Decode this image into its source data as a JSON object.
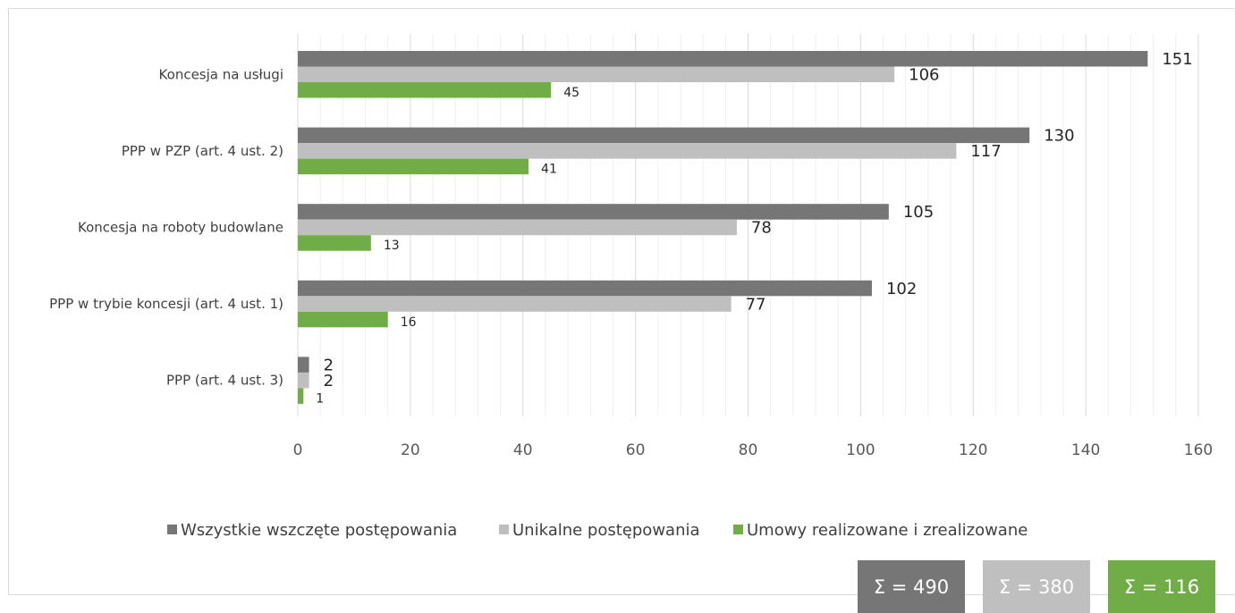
{
  "chart_data": {
    "type": "bar",
    "orientation": "horizontal",
    "categories": [
      "Koncesja na usługi",
      "PPP w PZP (art. 4 ust. 2)",
      "Koncesja na roboty budowlane",
      "PPP w trybie koncesji (art. 4 ust. 1)",
      "PPP (art. 4 ust. 3)"
    ],
    "series": [
      {
        "name": "Wszystkie wszczęte postępowania",
        "values": [
          151,
          130,
          105,
          102,
          2
        ],
        "color": "#767676"
      },
      {
        "name": "Unikalne postępowania",
        "values": [
          106,
          117,
          78,
          77,
          2
        ],
        "color": "#bfbfbf"
      },
      {
        "name": "Umowy realizowane i zrealizowane",
        "values": [
          45,
          41,
          13,
          16,
          1
        ],
        "color": "#70ad47"
      }
    ],
    "xlim": [
      0,
      160
    ],
    "xticks": [
      0,
      20,
      40,
      60,
      80,
      100,
      120,
      140,
      160
    ],
    "grid": true,
    "legend_position": "bottom",
    "title": "",
    "xlabel": "",
    "ylabel": ""
  },
  "totals": [
    {
      "label": "Σ = 490",
      "color": "#767676"
    },
    {
      "label": "Σ = 380",
      "color": "#bfbfbf"
    },
    {
      "label": "Σ = 116",
      "color": "#70ad47"
    }
  ]
}
